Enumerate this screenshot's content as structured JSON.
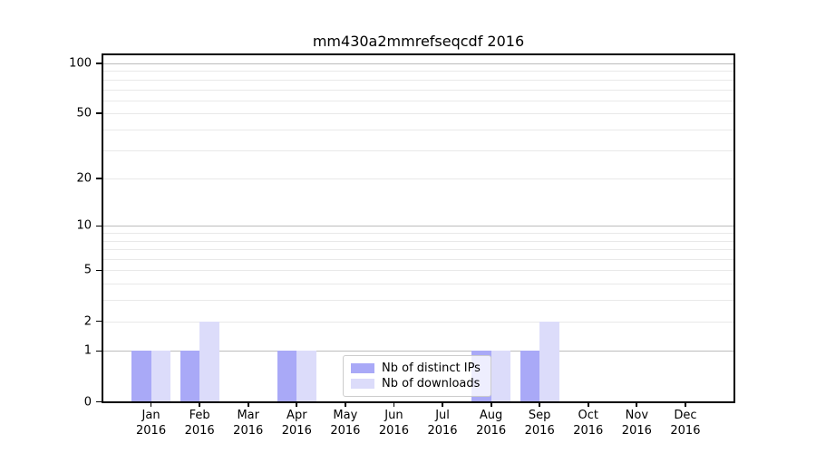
{
  "title": "mm430a2mmrefseqcdf 2016",
  "chart_data": {
    "type": "bar",
    "title": "mm430a2mmrefseqcdf 2016",
    "x_categories": [
      "Jan",
      "Feb",
      "Mar",
      "Apr",
      "May",
      "Jun",
      "Jul",
      "Aug",
      "Sep",
      "Oct",
      "Nov",
      "Dec"
    ],
    "x_year": "2016",
    "series": [
      {
        "name": "Nb of distinct IPs",
        "color": "#a9a9f7",
        "values": [
          1,
          1,
          0,
          1,
          0,
          0,
          0,
          1,
          1,
          0,
          0,
          0
        ]
      },
      {
        "name": "Nb of downloads",
        "color": "#dcdcfa",
        "values": [
          1,
          2,
          0,
          1,
          0,
          0,
          0,
          1,
          2,
          0,
          0,
          0
        ]
      }
    ],
    "yscale": "log1p",
    "ylim": [
      0,
      113
    ],
    "yticks_labeled": [
      0,
      1,
      2,
      5,
      10,
      20,
      50,
      100
    ],
    "yticks_minor": [
      3,
      4,
      6,
      7,
      8,
      9,
      30,
      40,
      60,
      70,
      80,
      90
    ],
    "grid": true,
    "legend_position": "lower center"
  },
  "colors": {
    "bar_distinct_ips": "#a9a9f7",
    "bar_downloads": "#dcdcfa",
    "grid_major": "#bdbdbd",
    "grid_minor": "#e9e9e9",
    "axis": "#000000",
    "text": "#000000",
    "legend_border": "#cccccc"
  }
}
